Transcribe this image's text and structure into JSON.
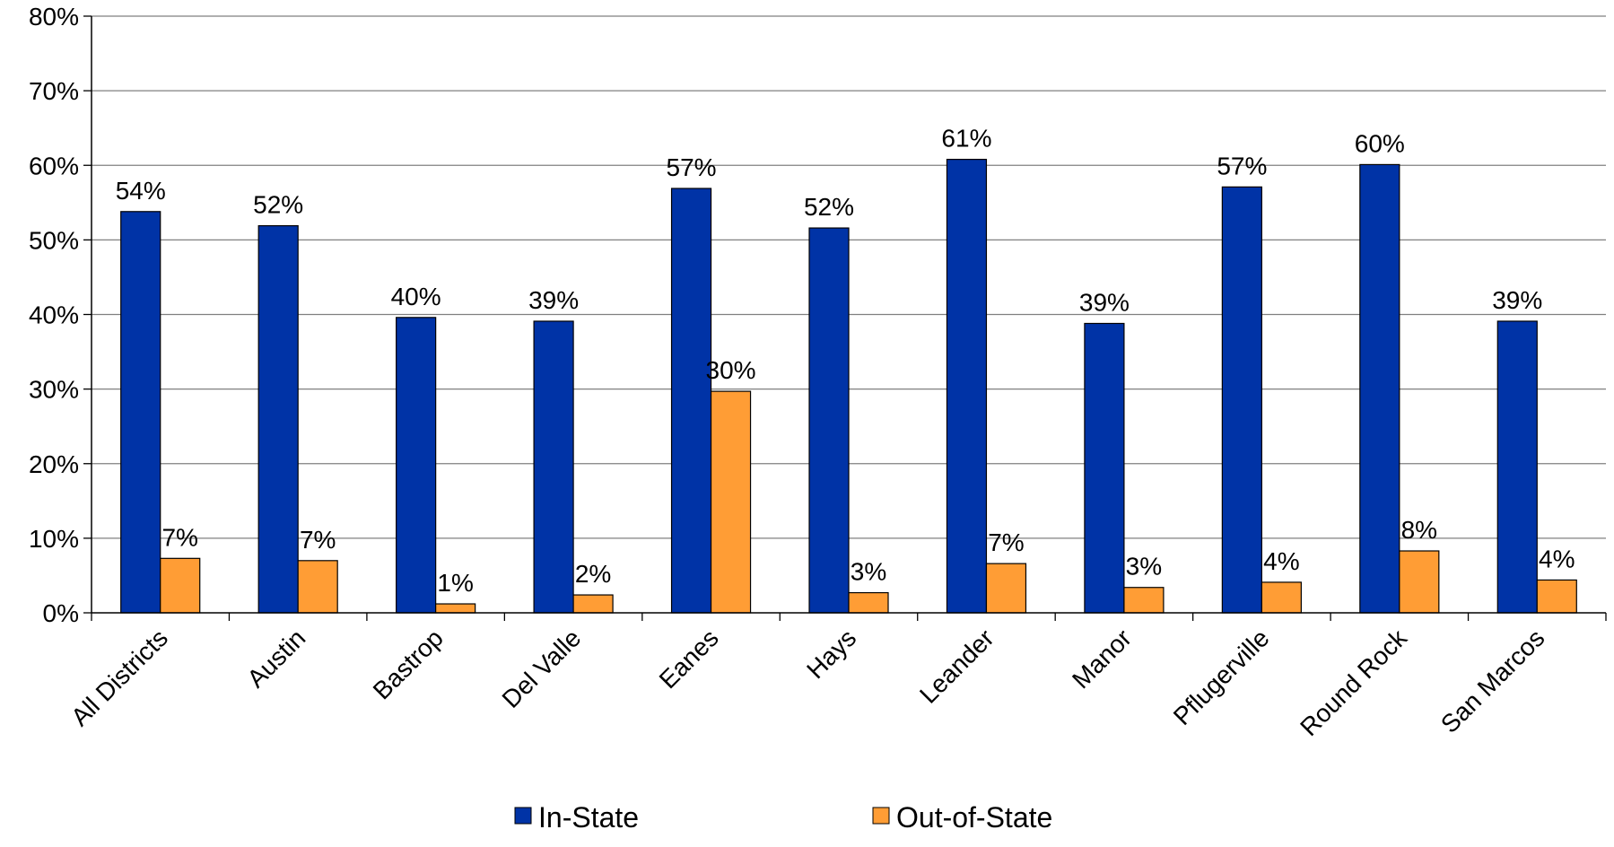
{
  "chart_data": {
    "type": "bar",
    "title": "",
    "xlabel": "",
    "ylabel": "",
    "ylim": [
      0,
      80
    ],
    "yticks": [
      "0%",
      "10%",
      "20%",
      "30%",
      "40%",
      "50%",
      "60%",
      "70%",
      "80%"
    ],
    "ytick_values": [
      0,
      10,
      20,
      30,
      40,
      50,
      60,
      70,
      80
    ],
    "grid": true,
    "legend_position": "bottom",
    "categories": [
      "All Districts",
      "Austin",
      "Bastrop",
      "Del Valle",
      "Eanes",
      "Hays",
      "Leander",
      "Manor",
      "Pflugerville",
      "Round Rock",
      "San Marcos"
    ],
    "series": [
      {
        "name": "In-State",
        "color": "#0033A6",
        "values": [
          53.8,
          51.9,
          39.6,
          39.1,
          56.9,
          51.6,
          60.8,
          38.8,
          57.1,
          60.1,
          39.1
        ],
        "labels": [
          "54%",
          "52%",
          "40%",
          "39%",
          "57%",
          "52%",
          "61%",
          "39%",
          "57%",
          "60%",
          "39%"
        ]
      },
      {
        "name": "Out-of-State",
        "color": "#FF9D35",
        "values": [
          7.3,
          7.0,
          1.2,
          2.4,
          29.7,
          2.7,
          6.6,
          3.4,
          4.1,
          8.3,
          4.4
        ],
        "labels": [
          "7%",
          "7%",
          "1%",
          "2%",
          "30%",
          "3%",
          "7%",
          "3%",
          "4%",
          "8%",
          "4%"
        ]
      }
    ]
  }
}
